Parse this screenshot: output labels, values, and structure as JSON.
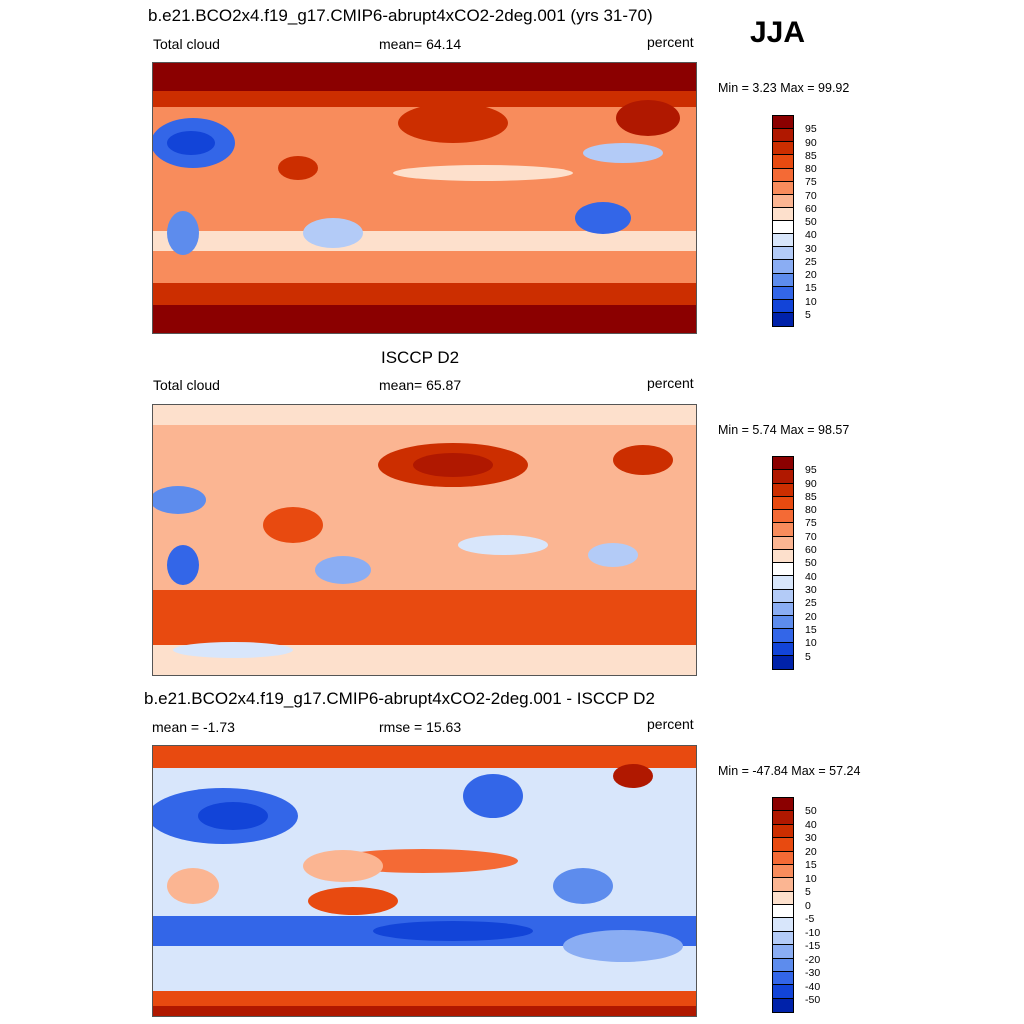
{
  "season": "JJA",
  "panels": [
    {
      "title": "b.e21.BCO2x4.f19_g17.CMIP6-abrupt4xCO2-2deg.001 (yrs 31-70)",
      "left": "Total cloud",
      "center": "mean=  64.14",
      "right": "percent",
      "minmax": "Min =   3.23 Max =  99.92"
    },
    {
      "title": "ISCCP D2",
      "left": "Total cloud",
      "center": "mean=  65.87",
      "right": "percent",
      "minmax": "Min =   5.74 Max =  98.57"
    },
    {
      "title": "b.e21.BCO2x4.f19_g17.CMIP6-abrupt4xCO2-2deg.001 - ISCCP D2",
      "left": "mean =  -1.73",
      "center": "rmse =  15.63",
      "right": "percent",
      "minmax": "Min = -47.84 Max =  57.24"
    }
  ],
  "colorbars": {
    "abs": {
      "labels": [
        "95",
        "90",
        "85",
        "80",
        "75",
        "70",
        "60",
        "50",
        "40",
        "30",
        "25",
        "20",
        "15",
        "10",
        "5"
      ],
      "colors": [
        "#8b0000",
        "#b01800",
        "#cc2e00",
        "#e84a10",
        "#f46a35",
        "#f88c5c",
        "#fbb592",
        "#fde0cc",
        "#ffffff",
        "#d8e6fb",
        "#b3cbf7",
        "#8aadf3",
        "#5d8ced",
        "#3366e8",
        "#1244d8",
        "#0022aa"
      ]
    },
    "diff": {
      "labels": [
        "50",
        "40",
        "30",
        "20",
        "15",
        "10",
        "5",
        "0",
        "-5",
        "-10",
        "-15",
        "-20",
        "-30",
        "-40",
        "-50"
      ],
      "colors": [
        "#8b0000",
        "#b01800",
        "#cc2e00",
        "#e84a10",
        "#f46a35",
        "#f88c5c",
        "#fbb592",
        "#fde0cc",
        "#ffffff",
        "#d8e6fb",
        "#b3cbf7",
        "#8aadf3",
        "#5d8ced",
        "#3366e8",
        "#1244d8",
        "#0022aa"
      ]
    }
  }
}
